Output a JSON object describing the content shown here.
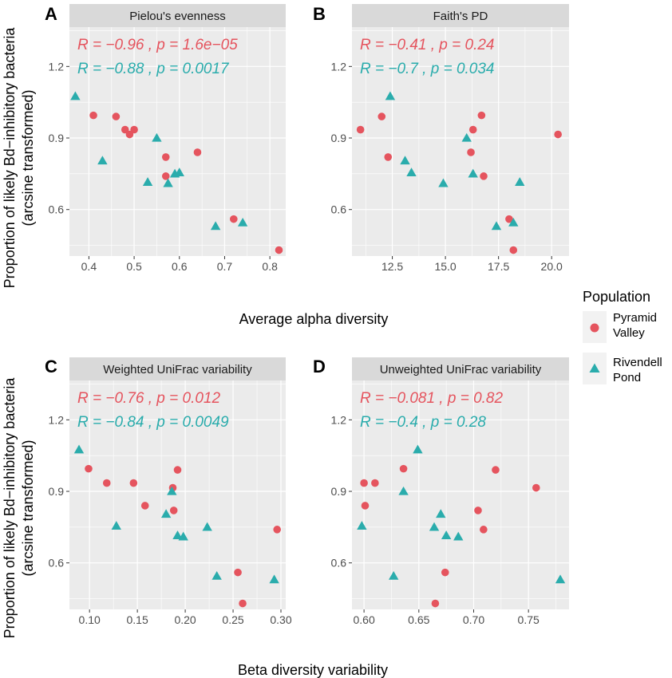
{
  "figure": {
    "x_axis_titles": [
      "Average alpha diversity",
      "Beta diversity variability"
    ],
    "y_axis_title_lines": [
      "Proportion of likely Bd−inhibitory bacteria",
      "(arcsine transformed)"
    ],
    "legend": {
      "title": "Population",
      "items": [
        {
          "label_lines": [
            "Pyramid",
            "Valley"
          ],
          "color": "#E5545E",
          "shape": "circle"
        },
        {
          "label_lines": [
            "Rivendell",
            "Pond"
          ],
          "color": "#2AACAC",
          "shape": "triangle"
        }
      ]
    },
    "colors": {
      "pyramid": "#E5545E",
      "rivendell": "#2AACAC",
      "panel_bg": "#EBEBEB",
      "strip_bg": "#D9D9D9",
      "grid": "#ffffff"
    }
  },
  "chart_data": [
    {
      "type": "scatter",
      "letter": "A",
      "title": "Pielou's evenness",
      "xticks": [
        "0.4",
        "0.5",
        "0.6",
        "0.7",
        "0.8"
      ],
      "xtick_values": [
        0.4,
        0.5,
        0.6,
        0.7,
        0.8
      ],
      "xlim": [
        0.357,
        0.835
      ],
      "yticks": [
        "0.6",
        "0.9",
        "1.2"
      ],
      "ytick_values": [
        0.6,
        0.9,
        1.2
      ],
      "ylim": [
        0.405,
        1.365
      ],
      "stats": [
        {
          "series": "Pyramid Valley",
          "R": "−0.96",
          "p": "1.6e−05"
        },
        {
          "series": "Rivendell Pond",
          "R": "−0.88",
          "p": "0.0017"
        }
      ],
      "series": [
        {
          "name": "Pyramid Valley",
          "shape": "circle",
          "x": [
            0.41,
            0.46,
            0.48,
            0.49,
            0.5,
            0.57,
            0.57,
            0.64,
            0.72,
            0.82
          ],
          "y": [
            0.995,
            0.99,
            0.935,
            0.915,
            0.935,
            0.82,
            0.74,
            0.84,
            0.56,
            0.43
          ]
        },
        {
          "name": "Rivendell Pond",
          "shape": "triangle",
          "x": [
            0.37,
            0.43,
            0.53,
            0.55,
            0.575,
            0.59,
            0.6,
            0.68,
            0.74
          ],
          "y": [
            1.075,
            0.805,
            0.715,
            0.9,
            0.71,
            0.75,
            0.755,
            0.53,
            0.545
          ]
        }
      ]
    },
    {
      "type": "scatter",
      "letter": "B",
      "title": "Faith's PD",
      "xticks": [
        "12.5",
        "15.0",
        "17.5",
        "20.0"
      ],
      "xtick_values": [
        12.5,
        15.0,
        17.5,
        20.0
      ],
      "xlim": [
        10.6,
        20.82
      ],
      "yticks": [
        "0.6",
        "0.9",
        "1.2"
      ],
      "ytick_values": [
        0.6,
        0.9,
        1.2
      ],
      "ylim": [
        0.405,
        1.365
      ],
      "stats": [
        {
          "series": "Pyramid Valley",
          "R": "−0.41",
          "p": "0.24"
        },
        {
          "series": "Rivendell Pond",
          "R": "−0.7",
          "p": "0.034"
        }
      ],
      "series": [
        {
          "name": "Pyramid Valley",
          "shape": "circle",
          "x": [
            11.0,
            12.0,
            12.3,
            16.2,
            16.3,
            16.7,
            16.8,
            18.0,
            18.2,
            20.3
          ],
          "y": [
            0.935,
            0.99,
            0.82,
            0.84,
            0.935,
            0.995,
            0.74,
            0.56,
            0.43,
            0.915
          ]
        },
        {
          "name": "Rivendell Pond",
          "shape": "triangle",
          "x": [
            12.4,
            13.1,
            13.4,
            14.9,
            16.0,
            16.3,
            17.4,
            18.2,
            18.5
          ],
          "y": [
            1.075,
            0.805,
            0.755,
            0.71,
            0.9,
            0.75,
            0.53,
            0.545,
            0.715
          ]
        }
      ]
    },
    {
      "type": "scatter",
      "letter": "C",
      "title": "Weighted UniFrac variability",
      "xticks": [
        "0.10",
        "0.15",
        "0.20",
        "0.25",
        "0.30"
      ],
      "xtick_values": [
        0.1,
        0.15,
        0.2,
        0.25,
        0.3
      ],
      "xlim": [
        0.079,
        0.305
      ],
      "yticks": [
        "0.6",
        "0.9",
        "1.2"
      ],
      "ytick_values": [
        0.6,
        0.9,
        1.2
      ],
      "ylim": [
        0.405,
        1.365
      ],
      "stats": [
        {
          "series": "Pyramid Valley",
          "R": "−0.76",
          "p": "0.012"
        },
        {
          "series": "Rivendell Pond",
          "R": "−0.84",
          "p": "0.0049"
        }
      ],
      "series": [
        {
          "name": "Pyramid Valley",
          "shape": "circle",
          "x": [
            0.099,
            0.118,
            0.146,
            0.158,
            0.187,
            0.188,
            0.192,
            0.255,
            0.26,
            0.296
          ],
          "y": [
            0.995,
            0.935,
            0.935,
            0.84,
            0.915,
            0.82,
            0.99,
            0.56,
            0.43,
            0.74
          ]
        },
        {
          "name": "Rivendell Pond",
          "shape": "triangle",
          "x": [
            0.089,
            0.128,
            0.18,
            0.186,
            0.192,
            0.198,
            0.223,
            0.233,
            0.293
          ],
          "y": [
            1.075,
            0.755,
            0.805,
            0.9,
            0.715,
            0.71,
            0.75,
            0.545,
            0.53
          ]
        }
      ]
    },
    {
      "type": "scatter",
      "letter": "D",
      "title": "Unweighted UniFrac variability",
      "xticks": [
        "0.60",
        "0.65",
        "0.70",
        "0.75"
      ],
      "xtick_values": [
        0.6,
        0.65,
        0.7,
        0.75
      ],
      "xlim": [
        0.589,
        0.787
      ],
      "yticks": [
        "0.6",
        "0.9",
        "1.2"
      ],
      "ytick_values": [
        0.6,
        0.9,
        1.2
      ],
      "ylim": [
        0.405,
        1.365
      ],
      "stats": [
        {
          "series": "Pyramid Valley",
          "R": "−0.081",
          "p": "0.82"
        },
        {
          "series": "Rivendell Pond",
          "R": "−0.4",
          "p": "0.28"
        }
      ],
      "series": [
        {
          "name": "Pyramid Valley",
          "shape": "circle",
          "x": [
            0.6,
            0.601,
            0.61,
            0.636,
            0.665,
            0.674,
            0.704,
            0.709,
            0.72,
            0.757
          ],
          "y": [
            0.935,
            0.84,
            0.935,
            0.995,
            0.43,
            0.56,
            0.82,
            0.74,
            0.99,
            0.915
          ]
        },
        {
          "name": "Rivendell Pond",
          "shape": "triangle",
          "x": [
            0.598,
            0.627,
            0.636,
            0.649,
            0.664,
            0.67,
            0.675,
            0.686,
            0.779
          ],
          "y": [
            0.755,
            0.545,
            0.9,
            1.075,
            0.75,
            0.805,
            0.715,
            0.71,
            0.53
          ]
        }
      ]
    }
  ]
}
